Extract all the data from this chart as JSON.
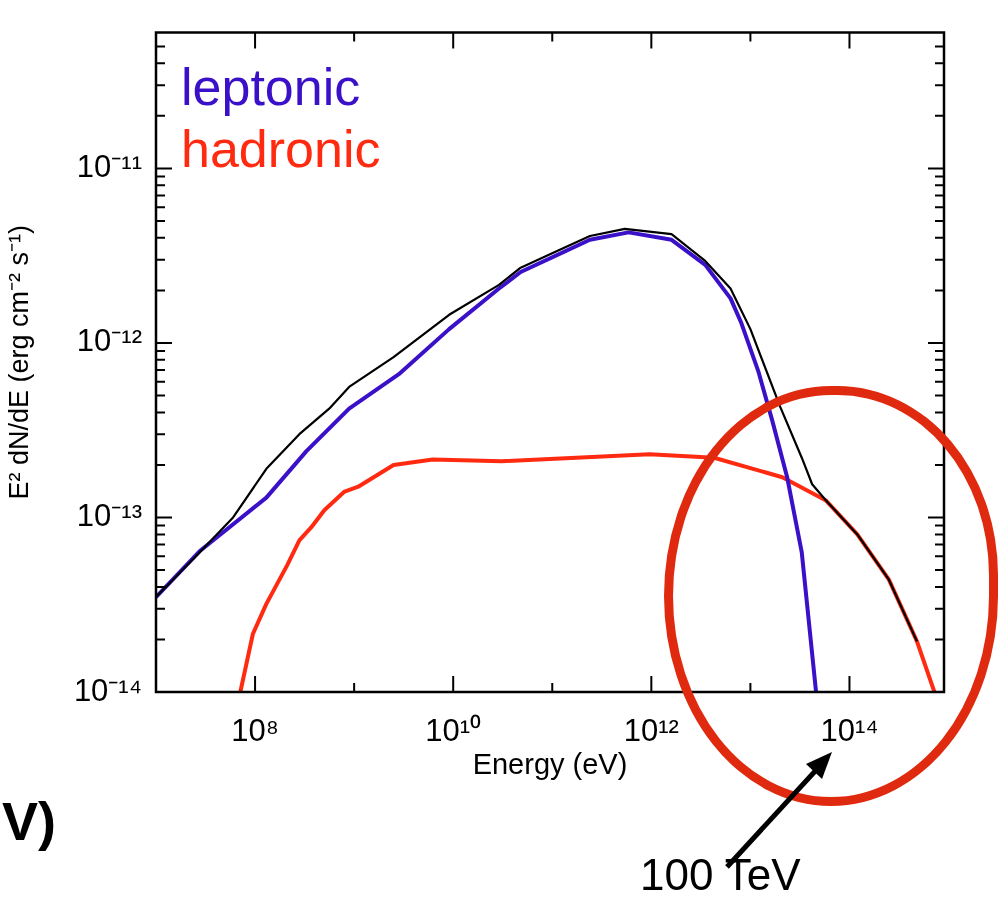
{
  "chart_data": {
    "type": "line",
    "xlabel": "Energy (eV)",
    "ylabel": "E² dN/dE (erg cm⁻² s⁻¹)",
    "log": "xy",
    "grid": false,
    "legend": "top left",
    "marker": "none",
    "line_style": "solid",
    "xlim": [
      10000000.0,
      900000000000000.0
    ],
    "xticks": [
      {
        "value": 100000000.0,
        "label": "10⁸"
      },
      {
        "value": 1000000000.0,
        "label": null
      },
      {
        "value": 10000000000.0,
        "label": "10¹⁰"
      },
      {
        "value": 100000000000.0,
        "label": null
      },
      {
        "value": 1000000000000.0,
        "label": "10¹²"
      },
      {
        "value": 10000000000000.0,
        "label": null
      },
      {
        "value": 100000000000000.0,
        "label": "10¹⁴"
      }
    ],
    "ylim": [
      1e-14,
      6e-11
    ],
    "yticks": [
      {
        "value": 1e-14,
        "label": "10⁻¹⁴"
      },
      {
        "value": 2e-14,
        "label": null
      },
      {
        "value": 3e-14,
        "label": null
      },
      {
        "value": 4e-14,
        "label": null
      },
      {
        "value": 5e-14,
        "label": null
      },
      {
        "value": 6e-14,
        "label": null
      },
      {
        "value": 7e-14,
        "label": null
      },
      {
        "value": 8e-14,
        "label": null
      },
      {
        "value": 9e-14,
        "label": null
      },
      {
        "value": 1e-13,
        "label": "10⁻¹³"
      },
      {
        "value": 2e-13,
        "label": null
      },
      {
        "value": 3e-13,
        "label": null
      },
      {
        "value": 4e-13,
        "label": null
      },
      {
        "value": 5e-13,
        "label": null
      },
      {
        "value": 6e-13,
        "label": null
      },
      {
        "value": 7e-13,
        "label": null
      },
      {
        "value": 8e-13,
        "label": null
      },
      {
        "value": 9e-13,
        "label": null
      },
      {
        "value": 1e-12,
        "label": "10⁻¹²"
      },
      {
        "value": 2e-12,
        "label": null
      },
      {
        "value": 3e-12,
        "label": null
      },
      {
        "value": 4e-12,
        "label": null
      },
      {
        "value": 5e-12,
        "label": null
      },
      {
        "value": 6e-12,
        "label": null
      },
      {
        "value": 7e-12,
        "label": null
      },
      {
        "value": 8e-12,
        "label": null
      },
      {
        "value": 9e-12,
        "label": null
      },
      {
        "value": 1e-11,
        "label": "10⁻¹¹"
      },
      {
        "value": 2e-11,
        "label": null
      },
      {
        "value": 3e-11,
        "label": null
      },
      {
        "value": 4e-11,
        "label": null
      },
      {
        "value": 5e-11,
        "label": null
      }
    ],
    "annotations": [
      "100 TeV",
      "V)"
    ],
    "series": [
      {
        "color": "#000000",
        "x": [
          10000000.0,
          27500000.0,
          60000000.0,
          130000000.0,
          280000000.0,
          560000000.0,
          890000000.0,
          2500000000.0,
          9100000000.0,
          29000000000.0,
          48000000000.0,
          240000000000.0,
          540000000000.0,
          1600000000000.0,
          3500000000000.0,
          6300000000000.0,
          10000000000000.0,
          20000000000000.0,
          33000000000000.0,
          42000000000000.0,
          58000000000000.0,
          120000000000000.0,
          250000000000000.0,
          480000000000000.0
        ],
        "values": [
          3.5e-14,
          6.3e-14,
          1e-13,
          1.9e-13,
          3e-13,
          4.2e-13,
          5.6e-13,
          8.3e-13,
          1.45e-12,
          2.15e-12,
          2.7e-12,
          4.1e-12,
          4.5e-12,
          4.2e-12,
          2.95e-12,
          2.05e-12,
          1.2e-12,
          4.3e-13,
          2.2e-13,
          1.55e-13,
          1.25e-13,
          8e-14,
          4.4e-14,
          1.95e-14
        ]
      },
      {
        "name": "leptonic",
        "color": "#3a10c8",
        "x": [
          10000000.0,
          27500000.0,
          130000000.0,
          330000000.0,
          890000000.0,
          2900000000.0,
          9100000000.0,
          29000000000.0,
          48000000000.0,
          240000000000.0,
          590000000000.0,
          1600000000000.0,
          3500000000000.0,
          6300000000000.0,
          8100000000000.0,
          12000000000000.0,
          16600000000000.0,
          23500000000000.0,
          33000000000000.0,
          46000000000000.0
        ],
        "values": [
          3.5e-14,
          6.4e-14,
          1.3e-13,
          2.4e-13,
          4.2e-13,
          6.7e-13,
          1.2e-12,
          2.05e-12,
          2.55e-12,
          3.9e-12,
          4.3e-12,
          3.9e-12,
          2.8e-12,
          1.8e-12,
          1.3e-12,
          6.9e-13,
          3.6e-13,
          1.7e-13,
          6.3e-14,
          1e-14
        ]
      },
      {
        "name": "hadronic",
        "color": "#ff2a10",
        "x": [
          71000000.0,
          95000000.0,
          130000000.0,
          210000000.0,
          280000000.0,
          370000000.0,
          500000000.0,
          790000000.0,
          1100000000.0,
          2500000000.0,
          6200000000.0,
          31000000000.0,
          960000000000.0,
          4300000000000.0,
          21000000000000.0,
          58000000000000.0,
          120000000000000.0,
          250000000000000.0,
          480000000000000.0,
          720000000000000.0
        ],
        "values": [
          1e-14,
          2.15e-14,
          3.2e-14,
          5.3e-14,
          7.4e-14,
          8.8e-14,
          1.1e-13,
          1.4e-13,
          1.5e-13,
          2e-13,
          2.15e-13,
          2.1e-13,
          2.3e-13,
          2.2e-13,
          1.7e-13,
          1.25e-13,
          8e-14,
          4.4e-14,
          1.95e-14,
          1e-14
        ]
      }
    ]
  }
}
